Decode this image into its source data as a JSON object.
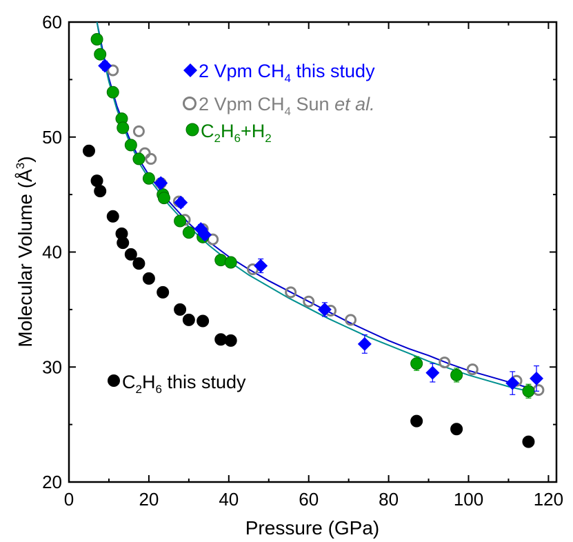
{
  "chart_data": {
    "type": "scatter",
    "xlabel": "Pressure (GPa)",
    "ylabel_text": "Molecular Volume (",
    "ylabel_unit": "Å",
    "ylabel_exp": "3",
    "ylabel_close": ")",
    "xlim": [
      0,
      122
    ],
    "ylim": [
      20,
      60
    ],
    "xticks": [
      0,
      20,
      40,
      60,
      80,
      100,
      120
    ],
    "yticks": [
      20,
      30,
      40,
      50,
      60
    ],
    "series": [
      {
        "name": "2 Vpm CH4 this study",
        "marker": "diamond",
        "color": "#0000ff",
        "points": [
          [
            9,
            56.2
          ],
          [
            23,
            46
          ],
          [
            28,
            44.3
          ],
          [
            33,
            42
          ],
          [
            34,
            41.5
          ],
          [
            48,
            38.8
          ],
          [
            64,
            35
          ],
          [
            74,
            32
          ],
          [
            91,
            29.5
          ],
          [
            111,
            28.6
          ],
          [
            117,
            29
          ]
        ],
        "errors": [
          0.4,
          0.4,
          0.4,
          0.4,
          0.4,
          0.6,
          0.6,
          0.8,
          0.8,
          1,
          1.1
        ]
      },
      {
        "name": "2 Vpm CH4 Sun et al.",
        "marker": "open-circle",
        "color": "#808080",
        "points": [
          [
            11,
            55.8
          ],
          [
            17.5,
            50.5
          ],
          [
            19,
            48.6
          ],
          [
            20.5,
            48.1
          ],
          [
            23,
            46
          ],
          [
            27.5,
            44.4
          ],
          [
            29,
            42.8
          ],
          [
            33.5,
            42
          ],
          [
            36,
            41.1
          ],
          [
            46,
            38.5
          ],
          [
            55.5,
            36.5
          ],
          [
            60,
            35.7
          ],
          [
            65.5,
            34.9
          ],
          [
            70.5,
            34.1
          ],
          [
            94,
            30.4
          ],
          [
            101,
            29.8
          ],
          [
            112,
            28.8
          ],
          [
            117.5,
            28
          ]
        ]
      },
      {
        "name": "C2H6+H2",
        "marker": "filled-circle",
        "color": "#00a000",
        "edge": "#006a00",
        "points": [
          [
            7,
            58.5
          ],
          [
            7.8,
            57.2
          ],
          [
            11,
            53.9
          ],
          [
            13.2,
            51.6
          ],
          [
            13.5,
            50.8
          ],
          [
            15.5,
            49.3
          ],
          [
            17.5,
            48.1
          ],
          [
            20,
            46.4
          ],
          [
            23.5,
            45
          ],
          [
            23.8,
            44.7
          ],
          [
            27.8,
            42.7
          ],
          [
            30,
            41.7
          ],
          [
            33.5,
            41.3
          ],
          [
            38,
            39.3
          ],
          [
            40.5,
            39.1
          ],
          [
            87,
            30.3
          ],
          [
            97,
            29.3
          ],
          [
            115,
            27.9
          ]
        ],
        "errors": [
          0.3,
          0.3,
          0.3,
          0.3,
          0.3,
          0.3,
          0.3,
          0.3,
          0.3,
          0.3,
          0.3,
          0.3,
          0.3,
          0.4,
          0.4,
          0.6,
          0.6,
          0.6
        ]
      },
      {
        "name": "C2H6 this study",
        "marker": "filled-circle",
        "color": "#000000",
        "points": [
          [
            5,
            48.8
          ],
          [
            7,
            46.2
          ],
          [
            7.8,
            45.3
          ],
          [
            11,
            43.1
          ],
          [
            13.2,
            41.6
          ],
          [
            13.5,
            40.8
          ],
          [
            15.5,
            39.8
          ],
          [
            17.5,
            39
          ],
          [
            20,
            37.7
          ],
          [
            23.5,
            36.5
          ],
          [
            27.8,
            35
          ],
          [
            30,
            34.1
          ],
          [
            33.5,
            34
          ],
          [
            38,
            32.4
          ],
          [
            40.5,
            32.3
          ],
          [
            87,
            25.3
          ],
          [
            97,
            24.6
          ],
          [
            115,
            23.5
          ]
        ]
      }
    ],
    "fits": [
      {
        "name": "CH4 fit",
        "color": "#0000cc",
        "points": [
          [
            7,
            60
          ],
          [
            8,
            58.3
          ],
          [
            9,
            56.6
          ],
          [
            10,
            55.1
          ],
          [
            12,
            52.7
          ],
          [
            15,
            50
          ],
          [
            18,
            47.8
          ],
          [
            20,
            46.7
          ],
          [
            25,
            44.4
          ],
          [
            30,
            42.5
          ],
          [
            35,
            40.9
          ],
          [
            40,
            39.6
          ],
          [
            45,
            38.5
          ],
          [
            50,
            37.5
          ],
          [
            55,
            36.6
          ],
          [
            60,
            35.7
          ],
          [
            65,
            34.8
          ],
          [
            70,
            33.9
          ],
          [
            75,
            33.1
          ],
          [
            80,
            32.3
          ],
          [
            85,
            31.6
          ],
          [
            90,
            31
          ],
          [
            95,
            30.3
          ],
          [
            100,
            29.7
          ],
          [
            105,
            29.2
          ],
          [
            110,
            28.7
          ],
          [
            115,
            28.2
          ]
        ]
      },
      {
        "name": "C2H6+H2 fit",
        "color": "#009090",
        "points": [
          [
            7,
            60
          ],
          [
            8,
            58
          ],
          [
            9,
            56.3
          ],
          [
            10,
            54.8
          ],
          [
            12,
            52.4
          ],
          [
            15,
            49.7
          ],
          [
            18,
            47.5
          ],
          [
            20,
            46.4
          ],
          [
            25,
            44.1
          ],
          [
            30,
            42.2
          ],
          [
            35,
            40.6
          ],
          [
            40,
            39.2
          ],
          [
            45,
            38
          ],
          [
            50,
            37
          ],
          [
            55,
            36
          ],
          [
            60,
            35.1
          ],
          [
            65,
            34.2
          ],
          [
            70,
            33.4
          ],
          [
            75,
            32.6
          ],
          [
            80,
            31.9
          ],
          [
            85,
            31.2
          ],
          [
            90,
            30.5
          ],
          [
            95,
            29.9
          ],
          [
            100,
            29.3
          ],
          [
            105,
            28.8
          ],
          [
            110,
            28.3
          ],
          [
            115,
            27.9
          ]
        ]
      }
    ],
    "legend": {
      "ch4": {
        "pre": "2 Vpm CH",
        "sub": "4",
        "post": " this study",
        "color": "#0000ff"
      },
      "sun": {
        "pre": "2 Vpm CH",
        "sub": "4",
        "mid": " Sun ",
        "ital": "et al.",
        "color": "#808080"
      },
      "h2": {
        "a": "C",
        "s1": "2",
        "b": "H",
        "s2": "6",
        "c": "+H",
        "s3": "2",
        "color": "#008000"
      },
      "c2h6": {
        "a": "C",
        "s1": "2",
        "b": "H",
        "s2": "6",
        "c": " this study",
        "color": "#000000"
      }
    }
  }
}
